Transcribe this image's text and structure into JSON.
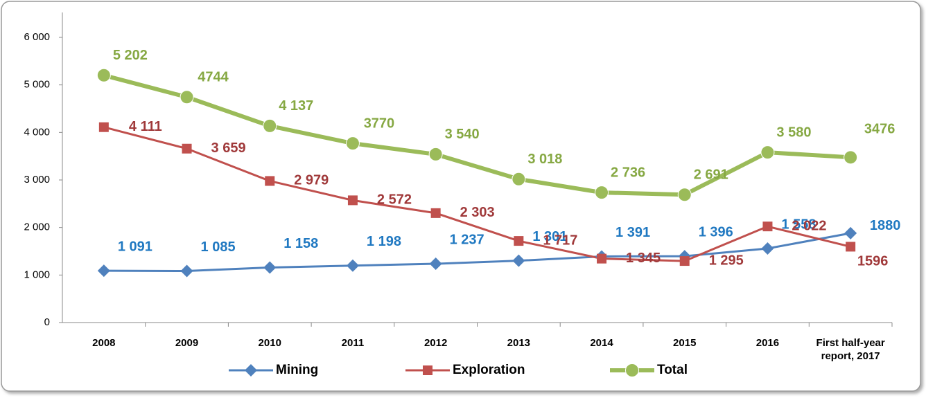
{
  "chart_data": {
    "type": "line",
    "categories": [
      "2008",
      "2009",
      "2010",
      "2011",
      "2012",
      "2013",
      "2014",
      "2015",
      "2016",
      "First half-year report, 2017"
    ],
    "series": [
      {
        "name": "Mining",
        "color": "#4f81bd",
        "label_color": "#1f78c1",
        "marker": "diamond",
        "values": [
          1091,
          1085,
          1158,
          1198,
          1237,
          1301,
          1391,
          1396,
          1558,
          1880
        ],
        "value_labels": [
          "1 091",
          "1 085",
          "1 158",
          "1 198",
          "1 237",
          "1 301",
          "1 391",
          "1 396",
          "1 558",
          "1880"
        ]
      },
      {
        "name": "Exploration",
        "color": "#c0504d",
        "label_color": "#a0393a",
        "marker": "square",
        "values": [
          4111,
          3659,
          2979,
          2572,
          2303,
          1717,
          1345,
          1295,
          2022,
          1596
        ],
        "value_labels": [
          "4 111",
          "3 659",
          "2 979",
          "2 572",
          "2 303",
          "1 717",
          "1 345",
          "1 295",
          "2 022",
          "1596"
        ]
      },
      {
        "name": "Total",
        "color": "#9bbb59",
        "label_color": "#86a843",
        "marker": "circle",
        "values": [
          5202,
          4744,
          4137,
          3770,
          3540,
          3018,
          2736,
          2691,
          3580,
          3476
        ],
        "value_labels": [
          "5 202",
          "4744",
          "4 137",
          "3770",
          "3 540",
          "3 018",
          "2 736",
          "2 691",
          "3 580",
          "3476"
        ]
      }
    ],
    "ylim": [
      0,
      6000
    ],
    "yticks": [
      0,
      {
        "value": 1000,
        "label": "1 000"
      },
      {
        "value": 2000,
        "label": "2 000"
      },
      {
        "value": 3000,
        "label": "3 000"
      },
      {
        "value": 4000,
        "label": "4 000"
      },
      {
        "value": 5000,
        "label": "5 000"
      },
      {
        "value": 6000,
        "label": "6 000"
      }
    ],
    "legend": "bottom"
  }
}
